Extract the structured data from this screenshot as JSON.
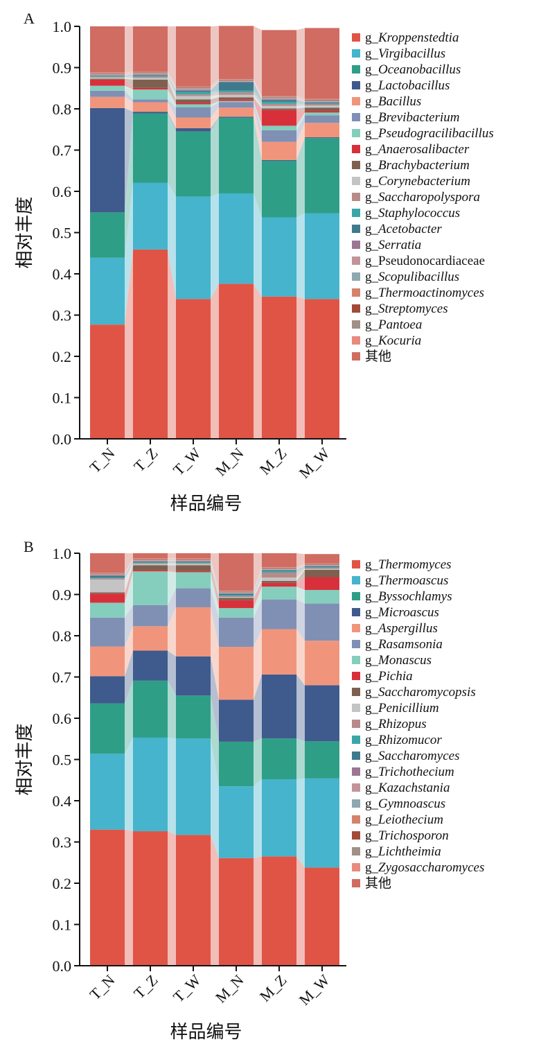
{
  "chart_data": [
    {
      "type": "bar",
      "stacked": true,
      "panel_label": "A",
      "categories": [
        "T_N",
        "T_Z",
        "T_W",
        "M_N",
        "M_Z",
        "M_W"
      ],
      "xlabel": "样品编号",
      "ylabel": "相对丰度",
      "ylim": [
        0,
        1
      ],
      "yticks": [
        "0.0",
        "0.1",
        "0.2",
        "0.3",
        "0.4",
        "0.5",
        "0.6",
        "0.7",
        "0.8",
        "0.9",
        "1.0"
      ],
      "legend_position": "right",
      "series": [
        {
          "prefix": "g_",
          "name": "Kroppenstedtia",
          "italic": true,
          "color": "#E05446",
          "values": [
            0.277,
            0.459,
            0.339,
            0.376,
            0.345,
            0.339
          ]
        },
        {
          "prefix": "g_",
          "name": "Virgibacillus",
          "italic": true,
          "color": "#45B4CC",
          "values": [
            0.162,
            0.162,
            0.248,
            0.219,
            0.192,
            0.208
          ]
        },
        {
          "prefix": "g_",
          "name": "Oceanobacillus",
          "italic": true,
          "color": "#2E9E87",
          "values": [
            0.11,
            0.168,
            0.158,
            0.184,
            0.137,
            0.182
          ]
        },
        {
          "prefix": "g_",
          "name": "Lactobacillus",
          "italic": true,
          "color": "#3F5A8C",
          "values": [
            0.253,
            0.004,
            0.008,
            0.002,
            0.002,
            0.002
          ]
        },
        {
          "prefix": "g_",
          "name": "Bacillus",
          "italic": true,
          "color": "#F0957C",
          "values": [
            0.027,
            0.023,
            0.026,
            0.022,
            0.044,
            0.035
          ]
        },
        {
          "prefix": "g_",
          "name": "Brevibacterium",
          "italic": true,
          "color": "#8090B4",
          "values": [
            0.015,
            0.007,
            0.025,
            0.013,
            0.028,
            0.018
          ]
        },
        {
          "prefix": "g_",
          "name": "Pseudogracilibacillus",
          "italic": true,
          "color": "#85CDBD",
          "values": [
            0.012,
            0.024,
            0.007,
            0.003,
            0.011,
            0.007
          ]
        },
        {
          "prefix": "g_",
          "name": "Anaerosalibacter",
          "italic": true,
          "color": "#D8303A",
          "values": [
            0.015,
            0.004,
            0.004,
            0.004,
            0.038,
            0.004
          ]
        },
        {
          "prefix": "g_",
          "name": "Brachybacterium",
          "italic": true,
          "color": "#7E6050",
          "values": [
            0.002,
            0.02,
            0.008,
            0.005,
            0.004,
            0.008
          ]
        },
        {
          "prefix": "g_",
          "name": "Corynebacterium",
          "italic": true,
          "color": "#C4C4C4",
          "values": [
            0.003,
            0.004,
            0.008,
            0.006,
            0.006,
            0.005
          ]
        },
        {
          "prefix": "g_",
          "name": "Saccharopolyspora",
          "italic": true,
          "color": "#B98A8A",
          "values": [
            0.002,
            0.003,
            0.004,
            0.006,
            0.005,
            0.003
          ]
        },
        {
          "prefix": "g_",
          "name": "Staphylococcus",
          "italic": true,
          "color": "#3AA7A7",
          "values": [
            0.002,
            0.002,
            0.006,
            0.004,
            0.005,
            0.002
          ]
        },
        {
          "prefix": "g_",
          "name": "Acetobacter",
          "italic": true,
          "color": "#3E7A8C",
          "values": [
            0.001,
            0.002,
            0.003,
            0.021,
            0.004,
            0.002
          ]
        },
        {
          "prefix": "g_",
          "name": "Serratia",
          "italic": true,
          "color": "#9C7592",
          "values": [
            0.001,
            0.001,
            0.002,
            0.001,
            0.002,
            0.001
          ]
        },
        {
          "prefix": "g_",
          "name": "Pseudonocardiaceae",
          "italic": false,
          "color": "#C2949A",
          "values": [
            0.001,
            0.002,
            0.002,
            0.001,
            0.002,
            0.002
          ]
        },
        {
          "prefix": "g_",
          "name": "Scopulibacillus",
          "italic": true,
          "color": "#8EA7B0",
          "values": [
            0.001,
            0.001,
            0.002,
            0.001,
            0.002,
            0.002
          ]
        },
        {
          "prefix": "g_",
          "name": "Thermoactinomyces",
          "italic": true,
          "color": "#D4836A",
          "values": [
            0.001,
            0.001,
            0.001,
            0.001,
            0.001,
            0.001
          ]
        },
        {
          "prefix": "g_",
          "name": "Streptomyces",
          "italic": true,
          "color": "#A24A3A",
          "values": [
            0.001,
            0.001,
            0.001,
            0.001,
            0.001,
            0.001
          ]
        },
        {
          "prefix": "g_",
          "name": "Pantoea",
          "italic": true,
          "color": "#A09088",
          "values": [
            0.001,
            0.001,
            0.001,
            0.001,
            0.001,
            0.001
          ]
        },
        {
          "prefix": "g_",
          "name": "Kocuria",
          "italic": true,
          "color": "#E88A80",
          "values": [
            0.001,
            0.001,
            0.001,
            0.001,
            0.001,
            0.001
          ]
        },
        {
          "prefix": "",
          "name": "其他",
          "italic": false,
          "color": "#D06C62",
          "values": [
            0.112,
            0.11,
            0.146,
            0.129,
            0.16,
            0.172
          ]
        }
      ]
    },
    {
      "type": "bar",
      "stacked": true,
      "panel_label": "B",
      "categories": [
        "T_N",
        "T_Z",
        "T_W",
        "M_N",
        "M_Z",
        "M_W"
      ],
      "xlabel": "样品编号",
      "ylabel": "相对丰度",
      "ylim": [
        0,
        1
      ],
      "yticks": [
        "0.0",
        "0.1",
        "0.2",
        "0.3",
        "0.4",
        "0.5",
        "0.6",
        "0.7",
        "0.8",
        "0.9",
        "1.0"
      ],
      "legend_position": "right",
      "series": [
        {
          "prefix": "g_",
          "name": "Thermomyces",
          "italic": true,
          "color": "#E05446",
          "values": [
            0.33,
            0.326,
            0.317,
            0.261,
            0.265,
            0.238
          ]
        },
        {
          "prefix": "g_",
          "name": "Thermoascus",
          "italic": true,
          "color": "#45B4CC",
          "values": [
            0.184,
            0.227,
            0.234,
            0.174,
            0.187,
            0.216
          ]
        },
        {
          "prefix": "g_",
          "name": "Byssochlamys",
          "italic": true,
          "color": "#2E9E87",
          "values": [
            0.122,
            0.138,
            0.104,
            0.108,
            0.099,
            0.09
          ]
        },
        {
          "prefix": "g_",
          "name": "Microascus",
          "italic": true,
          "color": "#3F5A8C",
          "values": [
            0.066,
            0.073,
            0.095,
            0.102,
            0.155,
            0.136
          ]
        },
        {
          "prefix": "g_",
          "name": "Aspergillus",
          "italic": true,
          "color": "#F0957C",
          "values": [
            0.072,
            0.059,
            0.119,
            0.128,
            0.11,
            0.108
          ]
        },
        {
          "prefix": "g_",
          "name": "Rasamsonia",
          "italic": true,
          "color": "#8090B4",
          "values": [
            0.07,
            0.051,
            0.046,
            0.071,
            0.072,
            0.09
          ]
        },
        {
          "prefix": "g_",
          "name": "Monascus",
          "italic": true,
          "color": "#85CDBD",
          "values": [
            0.036,
            0.082,
            0.039,
            0.023,
            0.031,
            0.033
          ]
        },
        {
          "prefix": "g_",
          "name": "Pichia",
          "italic": true,
          "color": "#D8303A",
          "values": [
            0.022,
            0.003,
            0.003,
            0.019,
            0.009,
            0.031
          ]
        },
        {
          "prefix": "g_",
          "name": "Saccharomycopsis",
          "italic": true,
          "color": "#7E6050",
          "values": [
            0.003,
            0.012,
            0.014,
            0.006,
            0.005,
            0.018
          ]
        },
        {
          "prefix": "g_",
          "name": "Penicillium",
          "italic": true,
          "color": "#C4C4C4",
          "values": [
            0.031,
            0.003,
            0.003,
            0.002,
            0.008,
            0.002
          ]
        },
        {
          "prefix": "g_",
          "name": "Rhizopus",
          "italic": true,
          "color": "#B98A8A",
          "values": [
            0.003,
            0.002,
            0.002,
            0.002,
            0.012,
            0.002
          ]
        },
        {
          "prefix": "g_",
          "name": "Rhizomucor",
          "italic": true,
          "color": "#3AA7A7",
          "values": [
            0.002,
            0.002,
            0.002,
            0.002,
            0.004,
            0.002
          ]
        },
        {
          "prefix": "g_",
          "name": "Saccharomyces",
          "italic": true,
          "color": "#3E7A8C",
          "values": [
            0.004,
            0.002,
            0.002,
            0.004,
            0.002,
            0.002
          ]
        },
        {
          "prefix": "g_",
          "name": "Trichothecium",
          "italic": true,
          "color": "#9C7592",
          "values": [
            0.002,
            0.001,
            0.001,
            0.001,
            0.001,
            0.001
          ]
        },
        {
          "prefix": "g_",
          "name": "Kazachstania",
          "italic": true,
          "color": "#C2949A",
          "values": [
            0.001,
            0.001,
            0.001,
            0.001,
            0.001,
            0.001
          ]
        },
        {
          "prefix": "g_",
          "name": "Gymnoascus",
          "italic": true,
          "color": "#8EA7B0",
          "values": [
            0.001,
            0.001,
            0.001,
            0.001,
            0.001,
            0.001
          ]
        },
        {
          "prefix": "g_",
          "name": "Leiothecium",
          "italic": true,
          "color": "#D4836A",
          "values": [
            0.001,
            0.001,
            0.001,
            0.001,
            0.001,
            0.001
          ]
        },
        {
          "prefix": "g_",
          "name": "Trichosporon",
          "italic": true,
          "color": "#A24A3A",
          "values": [
            0.001,
            0.001,
            0.001,
            0.001,
            0.001,
            0.001
          ]
        },
        {
          "prefix": "g_",
          "name": "Lichtheimia",
          "italic": true,
          "color": "#A09088",
          "values": [
            0.001,
            0.001,
            0.001,
            0.001,
            0.001,
            0.001
          ]
        },
        {
          "prefix": "g_",
          "name": "Zygosaccharomyces",
          "italic": true,
          "color": "#E88A80",
          "values": [
            0.001,
            0.001,
            0.001,
            0.001,
            0.001,
            0.001
          ]
        },
        {
          "prefix": "",
          "name": "其他",
          "italic": false,
          "color": "#D06C62",
          "values": [
            0.047,
            0.013,
            0.013,
            0.091,
            0.034,
            0.023
          ]
        }
      ]
    }
  ]
}
